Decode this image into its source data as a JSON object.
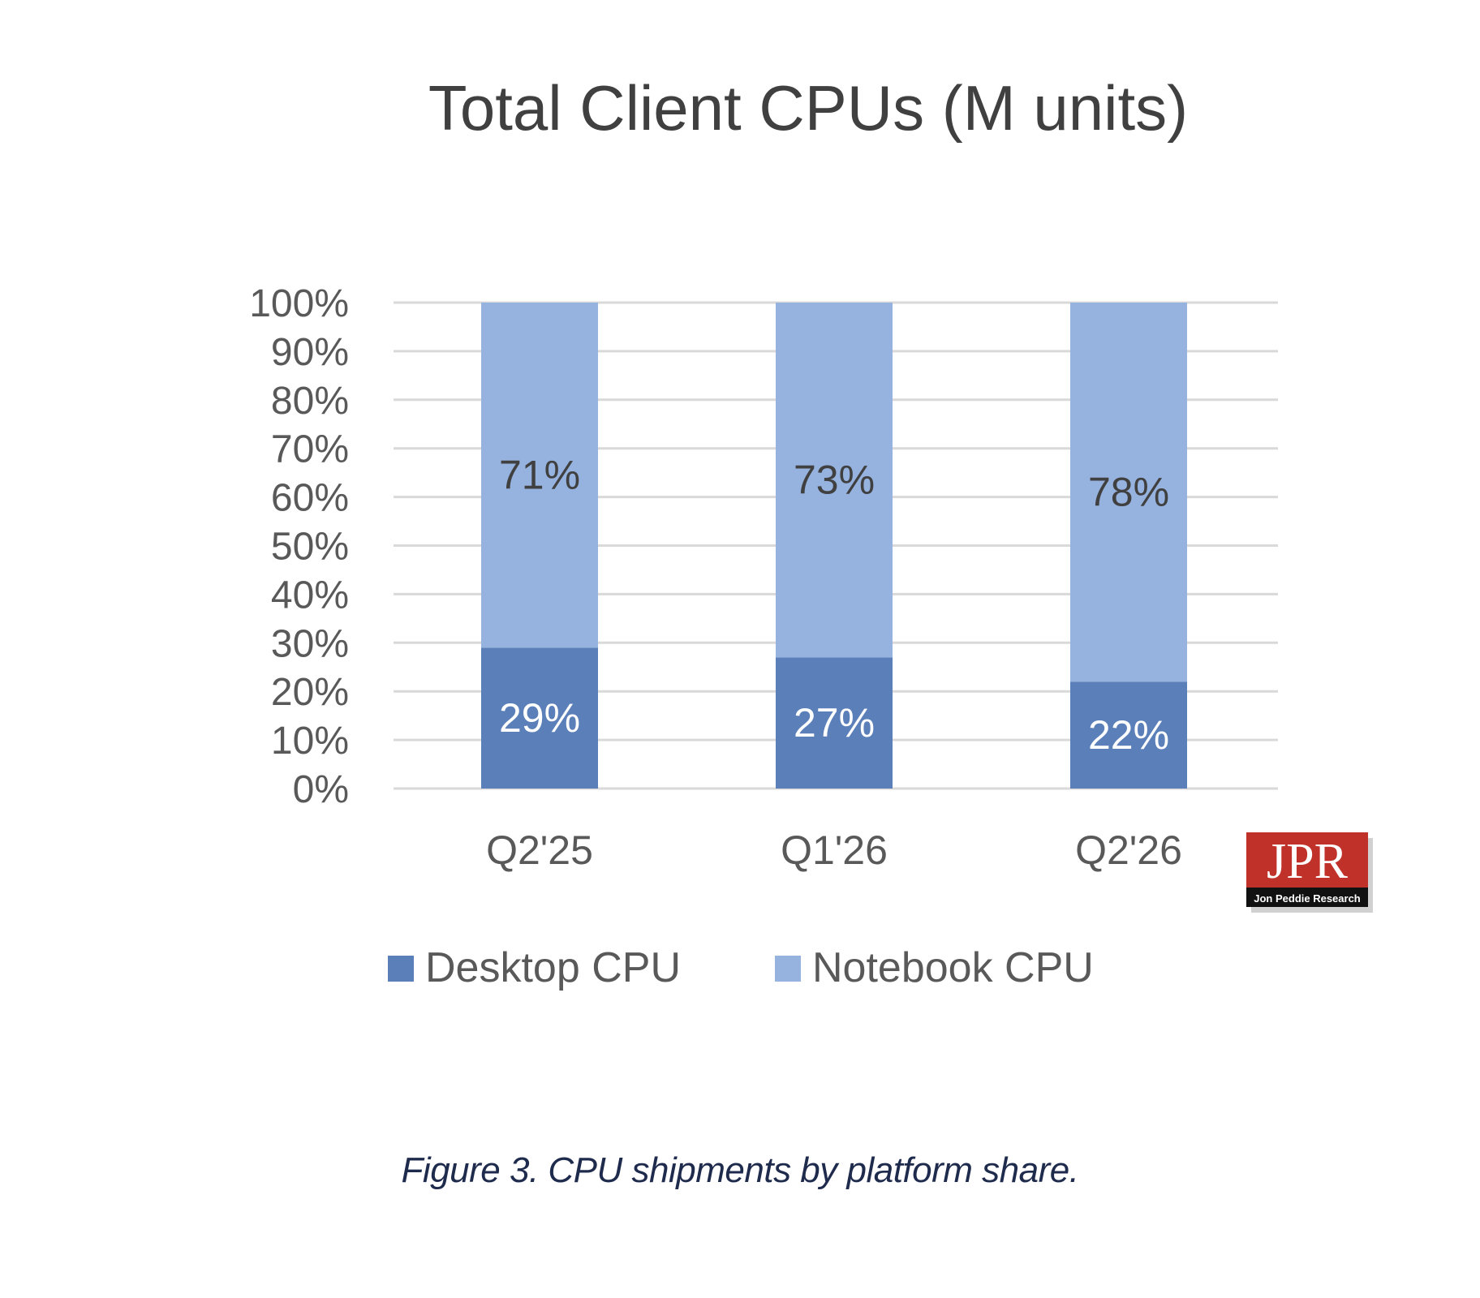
{
  "chart_data": {
    "type": "bar",
    "stacked": true,
    "title": "Total Client CPUs (M units)",
    "categories": [
      "Q2'25",
      "Q1'26",
      "Q2'26"
    ],
    "series": [
      {
        "name": "Desktop CPU",
        "values": [
          29,
          27,
          22
        ],
        "labels": [
          "29%",
          "27%",
          "22%"
        ],
        "color": "#5b7fb9"
      },
      {
        "name": "Notebook CPU",
        "values": [
          71,
          73,
          78
        ],
        "labels": [
          "71%",
          "73%",
          "78%"
        ],
        "color": "#96b2df"
      }
    ],
    "yticks": [
      "0%",
      "10%",
      "20%",
      "30%",
      "40%",
      "50%",
      "60%",
      "70%",
      "80%",
      "90%",
      "100%"
    ],
    "ylim": [
      0,
      100
    ],
    "grid": true,
    "legend_position": "bottom",
    "logo": {
      "text": "JPR",
      "subtext": "Jon Peddie Research",
      "color": "#c0312a"
    }
  },
  "caption": "Figure 3. CPU shipments by platform share."
}
